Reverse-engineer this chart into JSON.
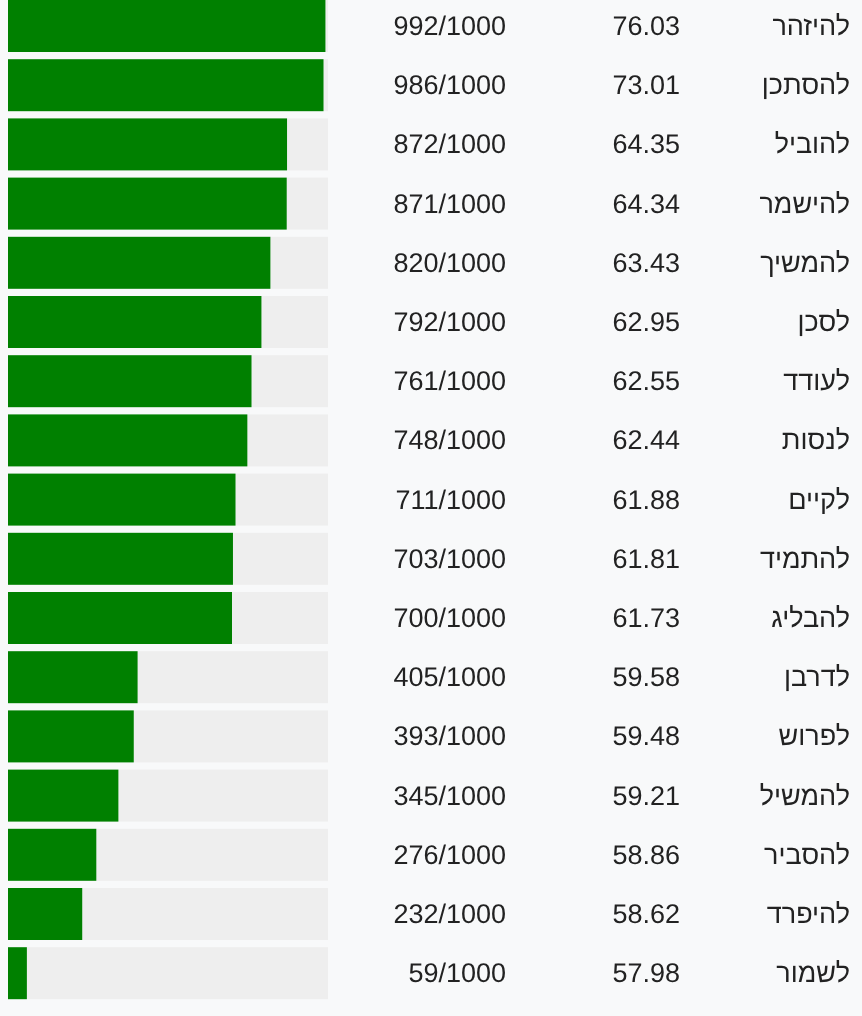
{
  "chart_data": {
    "type": "bar",
    "orientation": "horizontal",
    "tick_labels": "y",
    "xlim": [
      0,
      1000
    ],
    "categories": [
      "להיזהר",
      "להסתכן",
      "להוביל",
      "להישמר",
      "להמשיך",
      "לסכן",
      "לעודד",
      "לנסות",
      "לקיים",
      "להתמיד",
      "להבליג",
      "לדרבן",
      "לפרוש",
      "להמשיל",
      "להסביר",
      "להיפרד",
      "לשמור"
    ],
    "series": [
      {
        "color": "#008000",
        "values": [
          992,
          986,
          872,
          871,
          820,
          792,
          761,
          748,
          711,
          703,
          700,
          405,
          393,
          345,
          276,
          232,
          59
        ],
        "value_labels": [
          "992/1000",
          "986/1000",
          "872/1000",
          "871/1000",
          "820/1000",
          "792/1000",
          "761/1000",
          "748/1000",
          "711/1000",
          "703/1000",
          "700/1000",
          "405/1000",
          "393/1000",
          "345/1000",
          "276/1000",
          "232/1000",
          "59/1000"
        ]
      }
    ],
    "annotations": [
      "76.03",
      "73.01",
      "64.35",
      "64.34",
      "63.43",
      "62.95",
      "62.55",
      "62.44",
      "61.88",
      "61.81",
      "61.73",
      "59.58",
      "59.48",
      "59.21",
      "58.86",
      "58.62",
      "57.98"
    ]
  }
}
